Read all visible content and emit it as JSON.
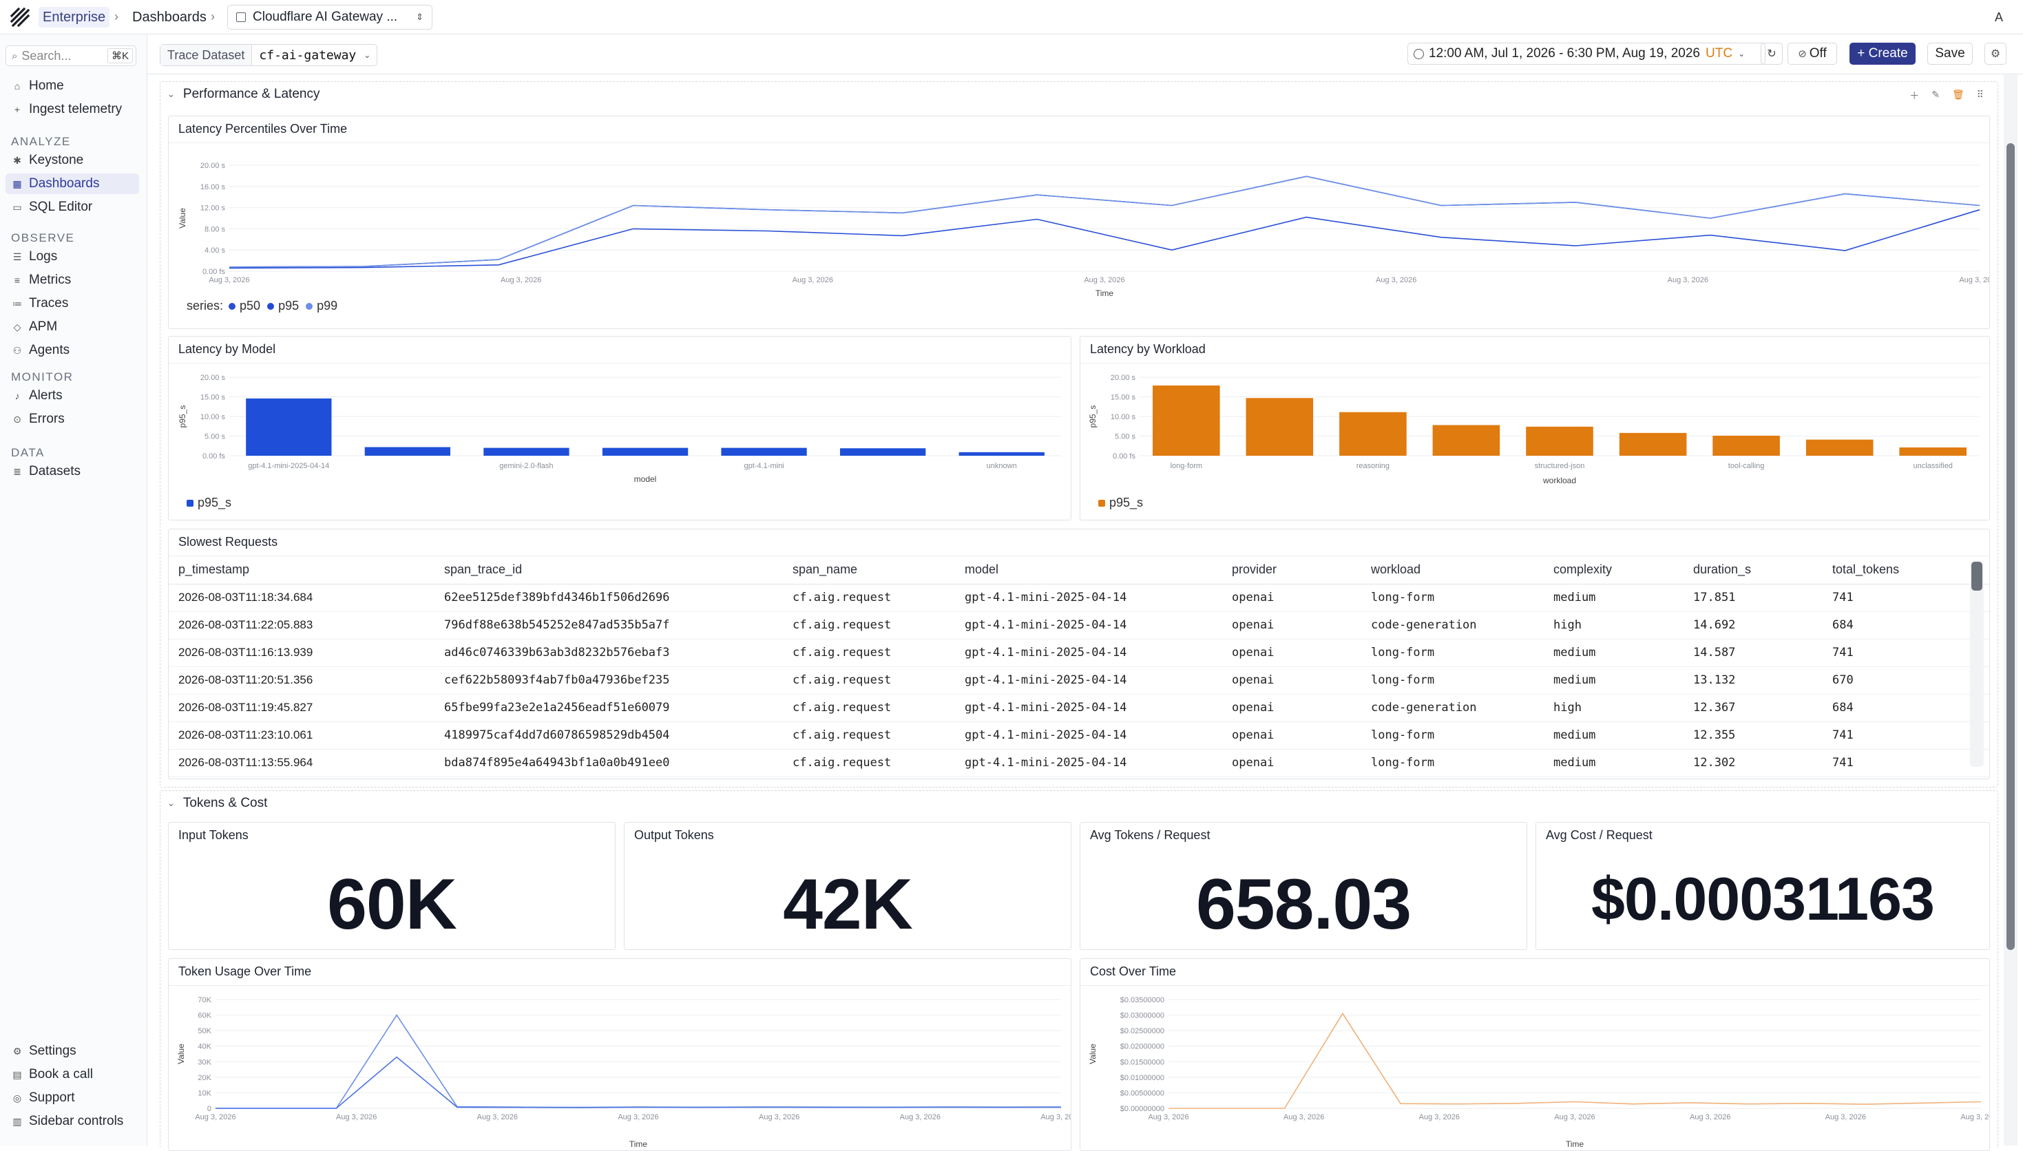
{
  "topbar": {
    "org": "Enterprise",
    "section": "Dashboards",
    "dashboard": "Cloudflare AI Gateway ...",
    "avatar_letter": "A"
  },
  "sidebar": {
    "search_placeholder": "Search...",
    "search_shortcut": "⌘K",
    "top_items": [
      {
        "label": "Home",
        "icon": "home-icon"
      },
      {
        "label": "Ingest telemetry",
        "icon": "plus-icon"
      }
    ],
    "sections": [
      {
        "title": "ANALYZE",
        "items": [
          {
            "label": "Keystone",
            "icon": "keystone-icon"
          },
          {
            "label": "Dashboards",
            "icon": "grid-icon",
            "active": true
          },
          {
            "label": "SQL Editor",
            "icon": "terminal-icon"
          }
        ]
      },
      {
        "title": "OBSERVE",
        "items": [
          {
            "label": "Logs",
            "icon": "doc-icon"
          },
          {
            "label": "Metrics",
            "icon": "bars-icon"
          },
          {
            "label": "Traces",
            "icon": "traces-icon"
          },
          {
            "label": "APM",
            "icon": "diamond-icon"
          },
          {
            "label": "Agents",
            "icon": "agent-icon"
          }
        ]
      },
      {
        "title": "MONITOR",
        "items": [
          {
            "label": "Alerts",
            "icon": "bell-icon"
          },
          {
            "label": "Errors",
            "icon": "error-icon"
          }
        ]
      },
      {
        "title": "DATA",
        "items": [
          {
            "label": "Datasets",
            "icon": "database-icon"
          }
        ]
      }
    ],
    "bottom_items": [
      {
        "label": "Settings",
        "icon": "gear-icon"
      },
      {
        "label": "Book a call",
        "icon": "calendar-icon"
      },
      {
        "label": "Support",
        "icon": "support-icon"
      },
      {
        "label": "Sidebar controls",
        "icon": "sidebar-icon"
      }
    ]
  },
  "toolbar": {
    "dataset_label": "Trace Dataset",
    "dataset_value": "cf-ai-gateway",
    "time_range": "12:00 AM, Jul 1, 2026 - 6:30 PM, Aug 19, 2026",
    "timezone": "UTC",
    "auto_refresh": "Off",
    "create_label": "+ Create",
    "save_label": "Save"
  },
  "sections": {
    "perf_title": "Performance & Latency",
    "tokens_title": "Tokens & Cost"
  },
  "panels": {
    "latency_time": "Latency Percentiles Over Time",
    "latency_model": "Latency by Model",
    "latency_workload": "Latency by Workload",
    "slowest": "Slowest Requests",
    "input_tokens": "Input Tokens",
    "output_tokens": "Output Tokens",
    "avg_tokens": "Avg Tokens / Request",
    "avg_cost": "Avg Cost / Request",
    "token_usage": "Token Usage Over Time",
    "cost_time": "Cost Over Time"
  },
  "stats": {
    "input_tokens": "60K",
    "output_tokens": "42K",
    "avg_tokens": "658.03",
    "avg_cost": "$0.00031163"
  },
  "colors": {
    "p50": "#2a4fd6",
    "p95": "#2449d8",
    "p99": "#6d8fe6",
    "bar_blue": "#1f4fd8",
    "bar_orange": "#e07b10",
    "accent": "#2f3a8f"
  },
  "chart_data": [
    {
      "id": "latency_time",
      "type": "line",
      "xlabel": "Time",
      "ylabel": "Value",
      "y_ticks": [
        "0.00 fs",
        "4.00 s",
        "8.00 s",
        "12.00 s",
        "16.00 s",
        "20.00 s"
      ],
      "ylim": [
        0,
        20
      ],
      "x_ticks": [
        "Aug 3, 2026",
        "Aug 3, 2026",
        "Aug 3, 2026",
        "Aug 3, 2026",
        "Aug 3, 2026",
        "Aug 3, 2026",
        "Aug 3, 2026"
      ],
      "legend_prefix": "series:",
      "series": [
        {
          "name": "p50",
          "values": [
            0.6,
            0.7,
            1.2,
            8.0,
            7.6,
            6.7,
            9.8,
            4.0,
            10.2,
            6.4,
            4.8,
            6.8,
            3.9,
            11.6
          ]
        },
        {
          "name": "p95",
          "values": [
            0.8,
            0.9,
            2.2,
            12.4,
            11.6,
            11.0,
            14.4,
            12.4,
            17.9,
            12.4,
            13.0,
            10.0,
            14.6,
            12.4
          ]
        },
        {
          "name": "p99",
          "values": [
            0.8,
            0.9,
            2.2,
            12.4,
            11.6,
            11.0,
            14.4,
            12.4,
            17.9,
            12.4,
            13.0,
            10.0,
            14.6,
            12.4
          ]
        }
      ]
    },
    {
      "id": "latency_model",
      "type": "bar",
      "xlabel": "model",
      "ylabel": "p95_s",
      "y_ticks": [
        "0.00 fs",
        "5.00 s",
        "10.00 s",
        "15.00 s",
        "20.00 s"
      ],
      "ylim": [
        0,
        20
      ],
      "categories": [
        "gpt-4.1-mini-2025-04-14",
        "",
        "gemini-2.0-flash",
        "",
        "gpt-4.1-mini",
        "",
        "unknown"
      ],
      "values": [
        14.6,
        2.2,
        2.0,
        2.0,
        2.0,
        1.9,
        0.9
      ],
      "series_name": "p95_s"
    },
    {
      "id": "latency_workload",
      "type": "bar",
      "xlabel": "workload",
      "ylabel": "p95_s",
      "y_ticks": [
        "0.00 fs",
        "5.00 s",
        "10.00 s",
        "15.00 s",
        "20.00 s"
      ],
      "ylim": [
        0,
        20
      ],
      "categories": [
        "long-form",
        "",
        "reasoning",
        "",
        "structured-json",
        "",
        "tool-calling",
        "",
        "unclassified"
      ],
      "values": [
        17.9,
        14.7,
        11.1,
        7.8,
        7.4,
        5.8,
        5.1,
        4.1,
        2.1
      ],
      "series_name": "p95_s"
    },
    {
      "id": "token_usage",
      "type": "line",
      "xlabel": "Time",
      "ylabel": "Value",
      "y_ticks": [
        "0",
        "10K",
        "20K",
        "30K",
        "40K",
        "50K",
        "60K",
        "70K"
      ],
      "ylim": [
        0,
        70000
      ],
      "x_ticks": [
        "Aug 3, 2026",
        "Aug 3, 2026",
        "Aug 3, 2026",
        "Aug 3, 2026",
        "Aug 3, 2026",
        "Aug 3, 2026",
        "Aug 3, 2026"
      ],
      "series": [
        {
          "values": [
            0,
            0,
            0,
            60000,
            1000,
            800,
            600,
            900,
            700,
            900,
            800,
            700,
            900,
            800,
            900
          ]
        },
        {
          "values": [
            0,
            0,
            0,
            33000,
            700,
            600,
            500,
            700,
            600,
            700,
            600,
            600,
            700,
            600,
            700
          ]
        }
      ]
    },
    {
      "id": "cost_time",
      "type": "line",
      "xlabel": "Time",
      "ylabel": "Value",
      "y_ticks": [
        "$0.00000000",
        "$0.00500000",
        "$0.01000000",
        "$0.01500000",
        "$0.02000000",
        "$0.02500000",
        "$0.03000000",
        "$0.03500000"
      ],
      "ylim": [
        0,
        0.035
      ],
      "x_ticks": [
        "Aug 3, 2026",
        "Aug 3, 2026",
        "Aug 3, 2026",
        "Aug 3, 2026",
        "Aug 3, 2026",
        "Aug 3, 2026",
        "Aug 3, 2026"
      ],
      "series": [
        {
          "values": [
            0,
            0,
            0,
            0.0305,
            0.0015,
            0.0014,
            0.0016,
            0.0021,
            0.0014,
            0.0018,
            0.0014,
            0.0016,
            0.0013,
            0.0017,
            0.0021
          ]
        }
      ]
    }
  ],
  "table": {
    "columns": [
      "p_timestamp",
      "span_trace_id",
      "span_name",
      "model",
      "provider",
      "workload",
      "complexity",
      "duration_s",
      "total_tokens"
    ],
    "rows": [
      [
        "2026-08-03T11:18:34.684",
        "62ee5125def389bfd4346b1f506d2696",
        "cf.aig.request",
        "gpt-4.1-mini-2025-04-14",
        "openai",
        "long-form",
        "medium",
        "17.851",
        "741"
      ],
      [
        "2026-08-03T11:22:05.883",
        "796df88e638b545252e847ad535b5a7f",
        "cf.aig.request",
        "gpt-4.1-mini-2025-04-14",
        "openai",
        "code-generation",
        "high",
        "14.692",
        "684"
      ],
      [
        "2026-08-03T11:16:13.939",
        "ad46c0746339b63ab3d8232b576ebaf3",
        "cf.aig.request",
        "gpt-4.1-mini-2025-04-14",
        "openai",
        "long-form",
        "medium",
        "14.587",
        "741"
      ],
      [
        "2026-08-03T11:20:51.356",
        "cef622b58093f4ab7fb0a47936bef235",
        "cf.aig.request",
        "gpt-4.1-mini-2025-04-14",
        "openai",
        "long-form",
        "medium",
        "13.132",
        "670"
      ],
      [
        "2026-08-03T11:19:45.827",
        "65fbe99fa23e2e1a2456eadf51e60079",
        "cf.aig.request",
        "gpt-4.1-mini-2025-04-14",
        "openai",
        "code-generation",
        "high",
        "12.367",
        "684"
      ],
      [
        "2026-08-03T11:23:10.061",
        "4189975caf4dd7d60786598529db4504",
        "cf.aig.request",
        "gpt-4.1-mini-2025-04-14",
        "openai",
        "long-form",
        "medium",
        "12.355",
        "741"
      ],
      [
        "2026-08-03T11:13:55.964",
        "bda874f895e4a64943bf1a0a0b491ee0",
        "cf.aig.request",
        "gpt-4.1-mini-2025-04-14",
        "openai",
        "long-form",
        "medium",
        "12.302",
        "741"
      ]
    ]
  }
}
